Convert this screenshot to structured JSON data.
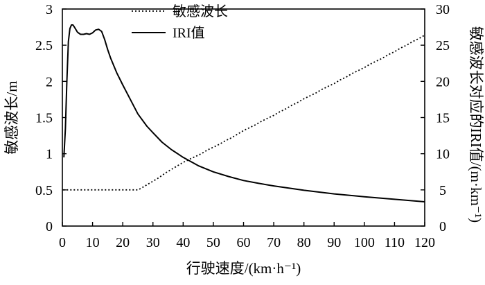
{
  "chart_data": {
    "type": "line",
    "x_axis": {
      "label": "行驶速度/(km·h⁻¹)",
      "range": [
        0,
        120
      ],
      "ticks": [
        0,
        10,
        20,
        30,
        40,
        50,
        60,
        70,
        80,
        90,
        100,
        110,
        120
      ]
    },
    "y_left": {
      "label": "敏感波长/m",
      "range": [
        0,
        3
      ],
      "ticks": [
        "0",
        "0.5",
        "1",
        "1.5",
        "2",
        "2.5",
        "3"
      ]
    },
    "y_right": {
      "label": "敏感波长对应的IRI值/(m·km⁻¹)",
      "range": [
        0,
        30
      ],
      "ticks": [
        "0",
        "5",
        "10",
        "15",
        "20",
        "25",
        "30"
      ]
    },
    "grid": false,
    "legend": {
      "position": "top-center"
    },
    "series": [
      {
        "name": "敏感波长",
        "axis": "left",
        "style": "dotted",
        "color": "#000000",
        "x": [
          0.3,
          1,
          2,
          4,
          6,
          8,
          10,
          12,
          14,
          16,
          18,
          20,
          22,
          24,
          25,
          26,
          28,
          30,
          32,
          34,
          36,
          38,
          40,
          42,
          44,
          46,
          48,
          50,
          52,
          54,
          56,
          58,
          60,
          62,
          64,
          66,
          68,
          70,
          72,
          74,
          76,
          78,
          80,
          82,
          84,
          86,
          88,
          90,
          92,
          94,
          96,
          98,
          100,
          102,
          104,
          106,
          108,
          110,
          112,
          114,
          116,
          118,
          120
        ],
        "y": [
          0.5,
          0.5,
          0.5,
          0.5,
          0.5,
          0.5,
          0.5,
          0.5,
          0.5,
          0.5,
          0.5,
          0.5,
          0.5,
          0.5,
          0.5,
          0.52,
          0.57,
          0.62,
          0.67,
          0.73,
          0.78,
          0.83,
          0.88,
          0.92,
          0.96,
          1.0,
          1.05,
          1.09,
          1.13,
          1.18,
          1.22,
          1.27,
          1.32,
          1.36,
          1.4,
          1.45,
          1.49,
          1.53,
          1.58,
          1.62,
          1.67,
          1.71,
          1.76,
          1.8,
          1.84,
          1.89,
          1.93,
          1.97,
          2.02,
          2.06,
          2.11,
          2.15,
          2.19,
          2.24,
          2.28,
          2.32,
          2.37,
          2.41,
          2.46,
          2.5,
          2.55,
          2.59,
          2.64
        ]
      },
      {
        "name": "IRI值",
        "axis": "right",
        "style": "solid",
        "color": "#000000",
        "x": [
          0.5,
          1,
          1.5,
          2,
          2.5,
          3,
          3.5,
          4,
          5,
          6,
          7,
          8,
          9,
          10,
          11,
          12,
          13,
          14,
          15,
          16,
          18,
          20,
          22,
          25,
          28,
          30,
          33,
          36,
          40,
          45,
          50,
          55,
          60,
          65,
          70,
          80,
          90,
          100,
          110,
          120
        ],
        "y": [
          9.5,
          13.5,
          20,
          25.5,
          27.3,
          27.8,
          27.8,
          27.5,
          26.8,
          26.5,
          26.5,
          26.6,
          26.5,
          26.7,
          27.1,
          27.2,
          26.9,
          25.8,
          24.4,
          23.2,
          21.2,
          19.5,
          17.9,
          15.5,
          13.8,
          12.9,
          11.6,
          10.6,
          9.5,
          8.35,
          7.5,
          6.85,
          6.3,
          5.9,
          5.55,
          4.95,
          4.45,
          4.05,
          3.7,
          3.35
        ]
      }
    ]
  }
}
